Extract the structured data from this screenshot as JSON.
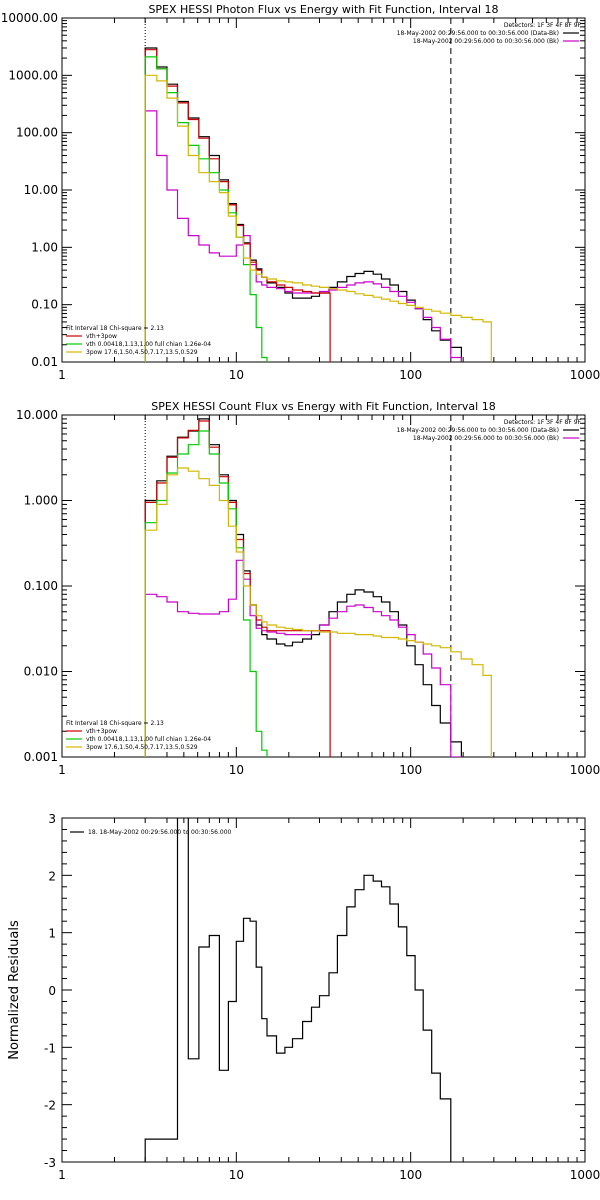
{
  "chart_data": [
    {
      "type": "line",
      "title": "SPEX HESSI Photon Flux vs Energy with Fit Function, Interval 18",
      "xlabel": "",
      "ylabel": "",
      "xscale": "log",
      "yscale": "log",
      "xlim": [
        1,
        1000
      ],
      "ylim": [
        0.01,
        10000
      ],
      "x_ticks": [
        "1",
        "10",
        "100",
        "1000"
      ],
      "y_ticks": [
        "0.01",
        "0.10",
        "1.00",
        "10.00",
        "100.00",
        "1000.00",
        "10000.00"
      ],
      "vlines": [
        {
          "x": 3,
          "style": "dotted"
        },
        {
          "x": 170,
          "style": "dashed"
        }
      ],
      "legend_tr": [
        {
          "text": "Detectors: 1F 3F 4F 8F 9F",
          "color": "#000000"
        },
        {
          "text": "18-May-2002 00:29:56.000 to 00:30:56.000 (Data-Bk)",
          "color": "#000000"
        },
        {
          "text": "18-May-2002 00:29:56.000 to 00:30:56.000 (Bk)",
          "color": "#cc00cc"
        }
      ],
      "legend_bl": [
        {
          "text": "Fit Interval 18     Chi-square = 2.13",
          "color": "#000000"
        },
        {
          "text": "vth+3pow",
          "color": "#cc0000"
        },
        {
          "text": "vth 0.00418,1.13,1.00  full chian 1.26e-04",
          "color": "#00cc00"
        },
        {
          "text": "3pow 17.6,1.50,4.50,7.17,13.5,0.529",
          "color": "#d4b800"
        }
      ],
      "series": [
        {
          "name": "",
          "color": "#000000",
          "x": [
            3.0,
            3.5,
            4.0,
            4.6,
            5.3,
            6.1,
            7.0,
            8.0,
            9.0,
            10.0,
            11.0,
            12.0,
            13.0,
            14.0,
            15.0,
            17.0,
            19.0,
            21.0,
            24.0,
            27.0,
            30.0,
            34.0,
            38.0,
            43.0,
            48.0,
            54.0,
            61.0,
            68.0,
            76.0,
            85.0,
            95.0,
            106.0,
            118.0,
            132.0,
            148.0,
            170.0
          ],
          "y": [
            3000,
            1400,
            700,
            350,
            180,
            85,
            40,
            15,
            5.8,
            2.5,
            1.2,
            0.6,
            0.42,
            0.3,
            0.24,
            0.2,
            0.16,
            0.13,
            0.13,
            0.14,
            0.16,
            0.2,
            0.25,
            0.31,
            0.35,
            0.38,
            0.34,
            0.28,
            0.22,
            0.17,
            0.12,
            0.085,
            0.055,
            0.035,
            0.024,
            0.018
          ]
        },
        {
          "name": "",
          "color": "#cc00cc",
          "x": [
            3.0,
            3.5,
            4.0,
            4.6,
            5.3,
            6.1,
            7.0,
            8.0,
            9.0,
            10.0,
            11.0,
            12.0,
            13.0,
            14.0,
            15.0,
            17.0,
            19.0,
            21.0,
            24.0,
            27.0,
            30.0,
            34.0,
            38.0,
            43.0,
            48.0,
            54.0,
            61.0,
            68.0,
            76.0,
            85.0,
            95.0,
            106.0,
            118.0,
            132.0,
            148.0,
            170.0
          ],
          "y": [
            240,
            40,
            10,
            3.2,
            1.6,
            1.1,
            0.8,
            0.7,
            0.7,
            1.1,
            1.6,
            0.5,
            0.25,
            0.22,
            0.2,
            0.19,
            0.17,
            0.16,
            0.16,
            0.16,
            0.17,
            0.18,
            0.2,
            0.22,
            0.24,
            0.25,
            0.23,
            0.2,
            0.17,
            0.14,
            0.11,
            0.085,
            0.06,
            0.04,
            0.025,
            0.012
          ]
        },
        {
          "name": "",
          "color": "#cc0000",
          "x": [
            3.0,
            3.5,
            4.0,
            4.6,
            5.3,
            6.1,
            7.0,
            8.0,
            9.0,
            10.0,
            11.0,
            12.0,
            13.0,
            14.0,
            15.0,
            17.0,
            19.0,
            21.0,
            24.0,
            27.0,
            30.0
          ],
          "y": [
            2800,
            1300,
            650,
            330,
            170,
            80,
            35,
            14,
            5.5,
            2.4,
            1.15,
            0.55,
            0.4,
            0.3,
            0.25,
            0.22,
            0.2,
            0.18,
            0.17,
            0.16,
            0.16
          ]
        },
        {
          "name": "",
          "color": "#00cc00",
          "x": [
            3.0,
            3.5,
            4.0,
            4.6,
            5.3,
            6.1,
            7.0,
            8.0,
            9.0,
            10.0,
            11.0,
            12.0,
            13.0,
            14.0,
            15.0
          ],
          "y": [
            2100,
            1300,
            500,
            150,
            60,
            35,
            20,
            10,
            4,
            1.5,
            0.5,
            0.15,
            0.04,
            0.012,
            0.005
          ]
        },
        {
          "name": "",
          "color": "#d4b800",
          "x": [
            3.0,
            3.5,
            4.0,
            4.6,
            5.3,
            6.1,
            7.0,
            8.0,
            9.0,
            10.0,
            11.0,
            12.0,
            13.0,
            14.0,
            15.0,
            17.0,
            19.0,
            21.0,
            24.0,
            27.0,
            30.0,
            34.0,
            38.0,
            43.0,
            48.0,
            54.0,
            61.0,
            68.0,
            76.0,
            85.0,
            95.0,
            106.0,
            118.0,
            132.0,
            148.0,
            170.0,
            195.0,
            225.0,
            260.0,
            290.0
          ],
          "y": [
            1000,
            800,
            400,
            130,
            40,
            20,
            14,
            9,
            3.5,
            1.5,
            0.65,
            0.4,
            0.34,
            0.3,
            0.28,
            0.26,
            0.25,
            0.24,
            0.22,
            0.21,
            0.2,
            0.19,
            0.18,
            0.17,
            0.155,
            0.145,
            0.135,
            0.125,
            0.115,
            0.105,
            0.097,
            0.09,
            0.083,
            0.077,
            0.071,
            0.065,
            0.06,
            0.055,
            0.05,
            0.006
          ]
        }
      ]
    },
    {
      "type": "line",
      "title": "SPEX HESSI Count Flux vs Energy with Fit Function, Interval 18",
      "xlabel": "",
      "ylabel": "",
      "xscale": "log",
      "yscale": "log",
      "xlim": [
        1,
        1000
      ],
      "ylim": [
        0.001,
        10
      ],
      "x_ticks": [
        "1",
        "10",
        "100",
        "1000"
      ],
      "y_ticks": [
        "0.001",
        "0.010",
        "0.100",
        "1.000",
        "10.000"
      ],
      "vlines": [
        {
          "x": 3,
          "style": "dotted"
        },
        {
          "x": 170,
          "style": "dashed"
        }
      ],
      "legend_tr": [
        {
          "text": "Detectors: 1F 3F 4F 8F 9F",
          "color": "#000000"
        },
        {
          "text": "18-May-2002 00:29:56.000 to 00:30:56.000 (Data-Bk)",
          "color": "#000000"
        },
        {
          "text": "18-May-2002 00:29:56.000 to 00:30:56.000 (Bk)",
          "color": "#cc00cc"
        }
      ],
      "legend_bl": [
        {
          "text": "Fit Interval 18     Chi-square = 2.13",
          "color": "#000000"
        },
        {
          "text": "vth+3pow",
          "color": "#cc0000"
        },
        {
          "text": "vth 0.00418,1.13,1.00  full chian 1.26e-04",
          "color": "#00cc00"
        },
        {
          "text": "3pow 17.6,1.50,4.50,7.17,13.5,0.529",
          "color": "#d4b800"
        }
      ],
      "series": [
        {
          "name": "",
          "color": "#000000",
          "x": [
            3.0,
            3.5,
            4.0,
            4.6,
            5.3,
            6.1,
            7.0,
            8.0,
            9.0,
            10.0,
            11.0,
            12.0,
            13.0,
            14.0,
            15.0,
            17.0,
            19.0,
            21.0,
            24.0,
            27.0,
            30.0,
            34.0,
            38.0,
            43.0,
            48.0,
            54.0,
            61.0,
            68.0,
            76.0,
            85.0,
            95.0,
            106.0,
            118.0,
            132.0,
            148.0,
            170.0
          ],
          "y": [
            1.0,
            1.7,
            3.3,
            5.5,
            6.5,
            9.0,
            4.5,
            2.0,
            1.0,
            0.4,
            0.15,
            0.06,
            0.035,
            0.027,
            0.024,
            0.021,
            0.02,
            0.022,
            0.024,
            0.027,
            0.035,
            0.05,
            0.065,
            0.08,
            0.09,
            0.085,
            0.075,
            0.065,
            0.05,
            0.035,
            0.02,
            0.012,
            0.007,
            0.004,
            0.0025,
            0.0015
          ]
        },
        {
          "name": "",
          "color": "#cc00cc",
          "x": [
            3.0,
            3.5,
            4.0,
            4.6,
            5.3,
            6.1,
            7.0,
            8.0,
            9.0,
            10.0,
            11.0,
            12.0,
            13.0,
            14.0,
            15.0,
            17.0,
            19.0,
            21.0,
            24.0,
            27.0,
            30.0,
            34.0,
            38.0,
            43.0,
            48.0,
            54.0,
            61.0,
            68.0,
            76.0,
            85.0,
            95.0,
            106.0,
            118.0,
            132.0,
            148.0,
            170.0
          ],
          "y": [
            0.08,
            0.075,
            0.065,
            0.05,
            0.048,
            0.047,
            0.047,
            0.05,
            0.07,
            0.2,
            0.12,
            0.045,
            0.032,
            0.03,
            0.029,
            0.028,
            0.027,
            0.027,
            0.027,
            0.03,
            0.035,
            0.042,
            0.05,
            0.058,
            0.06,
            0.056,
            0.05,
            0.045,
            0.04,
            0.033,
            0.027,
            0.022,
            0.016,
            0.011,
            0.007,
            0.001
          ]
        },
        {
          "name": "",
          "color": "#cc0000",
          "x": [
            3.0,
            3.5,
            4.0,
            4.6,
            5.3,
            6.1,
            7.0,
            8.0,
            9.0,
            10.0,
            11.0,
            12.0,
            13.0,
            14.0,
            15.0,
            17.0,
            19.0,
            21.0,
            24.0,
            27.0,
            30.0
          ],
          "y": [
            0.95,
            1.6,
            3.2,
            5.4,
            6.6,
            8.5,
            4.2,
            1.9,
            0.95,
            0.35,
            0.14,
            0.06,
            0.04,
            0.033,
            0.03,
            0.03,
            0.03,
            0.03,
            0.03,
            0.03,
            0.03
          ]
        },
        {
          "name": "",
          "color": "#00cc00",
          "x": [
            3.0,
            3.5,
            4.0,
            4.6,
            5.3,
            6.1,
            7.0,
            8.0,
            9.0,
            10.0,
            11.0,
            12.0,
            13.0,
            14.0,
            15.0
          ],
          "y": [
            0.55,
            1.0,
            2.1,
            3.5,
            4.5,
            6.5,
            3.5,
            1.6,
            0.8,
            0.28,
            0.04,
            0.01,
            0.002,
            0.0012,
            0.0005
          ]
        },
        {
          "name": "",
          "color": "#d4b800",
          "x": [
            3.0,
            3.5,
            4.0,
            4.6,
            5.3,
            6.1,
            7.0,
            8.0,
            9.0,
            10.0,
            11.0,
            12.0,
            13.0,
            14.0,
            15.0,
            17.0,
            19.0,
            21.0,
            24.0,
            27.0,
            30.0,
            34.0,
            38.0,
            43.0,
            48.0,
            54.0,
            61.0,
            68.0,
            76.0,
            85.0,
            95.0,
            106.0,
            118.0,
            132.0,
            148.0,
            170.0,
            195.0,
            225.0,
            260.0,
            290.0
          ],
          "y": [
            0.45,
            0.9,
            2.0,
            2.4,
            2.2,
            1.8,
            1.5,
            1.0,
            0.5,
            0.25,
            0.1,
            0.06,
            0.045,
            0.038,
            0.035,
            0.033,
            0.032,
            0.031,
            0.03,
            0.03,
            0.029,
            0.029,
            0.028,
            0.028,
            0.027,
            0.027,
            0.026,
            0.025,
            0.025,
            0.024,
            0.023,
            0.022,
            0.021,
            0.02,
            0.019,
            0.017,
            0.014,
            0.012,
            0.009,
            0.0005
          ]
        }
      ]
    },
    {
      "type": "line",
      "title": "",
      "xlabel": "",
      "ylabel": "Normalized Residuals",
      "xscale": "log",
      "yscale": "linear",
      "xlim": [
        1,
        1000
      ],
      "ylim": [
        -3,
        3
      ],
      "x_ticks": [
        "1",
        "10",
        "100",
        "1000"
      ],
      "y_ticks": [
        "-3",
        "-2",
        "-1",
        "0",
        "1",
        "2",
        "3"
      ],
      "legend_tl": [
        {
          "text": "18. 18-May-2002 00:29:56.000 to 00:30:56.000",
          "color": "#000000"
        }
      ],
      "series": [
        {
          "name": "",
          "color": "#000000",
          "x": [
            3.0,
            4.2,
            4.6,
            5.3,
            6.1,
            7.0,
            8.0,
            9.0,
            10.0,
            11.0,
            12.0,
            13.0,
            14.0,
            15.0,
            17.0,
            19.0,
            21.0,
            24.0,
            27.0,
            30.0,
            34.0,
            38.0,
            43.0,
            48.0,
            54.0,
            61.0,
            68.0,
            76.0,
            85.0,
            95.0,
            106.0,
            118.0,
            132.0,
            148.0,
            170.0
          ],
          "y": [
            -2.6,
            -2.6,
            3.1,
            -1.2,
            0.75,
            0.95,
            -1.4,
            -0.2,
            0.85,
            1.25,
            1.2,
            0.4,
            -0.5,
            -0.8,
            -1.1,
            -1.0,
            -0.85,
            -0.55,
            -0.3,
            -0.1,
            0.3,
            0.95,
            1.45,
            1.75,
            2.0,
            1.9,
            1.8,
            1.5,
            1.1,
            0.6,
            0,
            -0.7,
            -1.45,
            -1.9,
            -3.1
          ]
        }
      ]
    }
  ]
}
